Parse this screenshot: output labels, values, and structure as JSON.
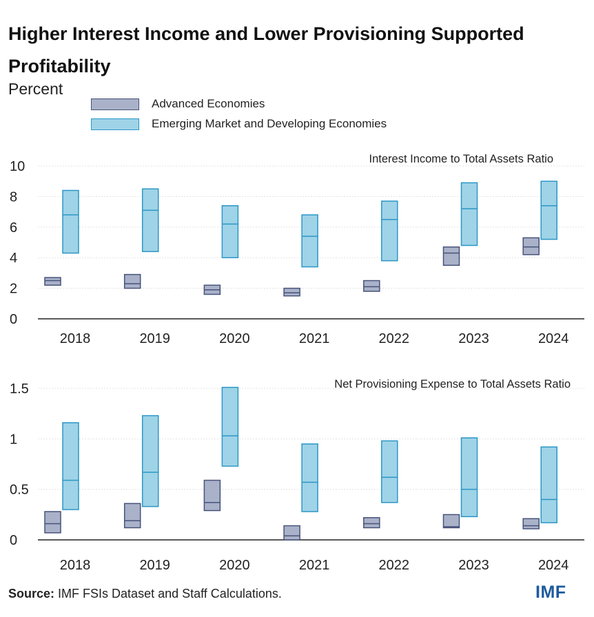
{
  "title": "Higher Interest Income and Lower Provisioning Supported Profitability",
  "unit_label": "Percent",
  "legend": [
    {
      "label": "Advanced Economies",
      "fill": "#a9b2c9",
      "stroke": "#47527a"
    },
    {
      "label": "Emerging Market and Developing Economies",
      "fill": "#9fd3e7",
      "stroke": "#2a97c6"
    }
  ],
  "source_label": "Source:",
  "source_text": "IMF FSIs Dataset and Staff Calculations.",
  "logo": "IMF",
  "chart_data": [
    {
      "type": "boxplot",
      "title": "Interest Income to Total Assets Ratio",
      "categories": [
        "2018",
        "2019",
        "2020",
        "2021",
        "2022",
        "2023",
        "2024"
      ],
      "ylim": [
        0,
        10
      ],
      "yticks": [
        0,
        2,
        4,
        6,
        8,
        10
      ],
      "ytick_labels": [
        "0",
        "2",
        "4",
        "6",
        "8",
        "10"
      ],
      "series": [
        {
          "name": "Advanced Economies",
          "low": [
            2.2,
            2.0,
            1.6,
            1.5,
            1.8,
            3.5,
            4.2
          ],
          "median": [
            2.5,
            2.3,
            1.9,
            1.7,
            2.1,
            4.3,
            4.7
          ],
          "high": [
            2.7,
            2.9,
            2.2,
            2.0,
            2.5,
            4.7,
            5.3
          ]
        },
        {
          "name": "Emerging Market and Developing Economies",
          "low": [
            4.3,
            4.4,
            4.0,
            3.4,
            3.8,
            4.8,
            5.2
          ],
          "median": [
            6.8,
            7.1,
            6.2,
            5.4,
            6.5,
            7.2,
            7.4
          ],
          "high": [
            8.4,
            8.5,
            7.4,
            6.8,
            7.7,
            8.9,
            9.0
          ]
        }
      ]
    },
    {
      "type": "boxplot",
      "title": "Net Provisioning Expense to Total Assets Ratio",
      "categories": [
        "2018",
        "2019",
        "2020",
        "2021",
        "2022",
        "2023",
        "2024"
      ],
      "ylim": [
        0,
        1.5
      ],
      "yticks": [
        0,
        0.5,
        1,
        1.5
      ],
      "ytick_labels": [
        "0",
        "0.5",
        "1",
        "1.5"
      ],
      "series": [
        {
          "name": "Advanced Economies",
          "low": [
            0.07,
            0.12,
            0.29,
            0.0,
            0.12,
            0.12,
            0.11
          ],
          "median": [
            0.16,
            0.19,
            0.37,
            0.04,
            0.16,
            0.13,
            0.14
          ],
          "high": [
            0.28,
            0.36,
            0.59,
            0.14,
            0.22,
            0.25,
            0.21
          ]
        },
        {
          "name": "Emerging Market and Developing Economies",
          "low": [
            0.3,
            0.33,
            0.73,
            0.28,
            0.37,
            0.23,
            0.17
          ],
          "median": [
            0.59,
            0.67,
            1.03,
            0.57,
            0.62,
            0.5,
            0.4
          ],
          "high": [
            1.16,
            1.23,
            1.51,
            0.95,
            0.98,
            1.01,
            0.92
          ]
        }
      ]
    }
  ]
}
